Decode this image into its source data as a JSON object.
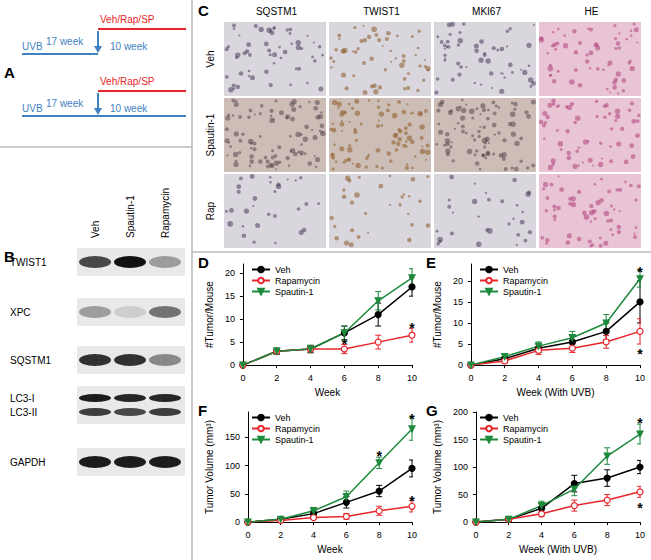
{
  "panel_labels": [
    "A",
    "B",
    "C",
    "D",
    "E",
    "F",
    "G"
  ],
  "schematic": {
    "rows": [
      {
        "treatment": "Veh/Rap/SP",
        "exposure": "UVB",
        "first_period": "17 week",
        "second_period": "10 week"
      },
      {
        "treatment": "Veh/Rap/SP",
        "exposure": "UVB",
        "first_period": "17 week",
        "second_period": "10 week"
      }
    ]
  },
  "western_blot": {
    "lanes": [
      "Veh",
      "Spautin-1",
      "Rapamycin"
    ],
    "rows": [
      "TWIST1",
      "XPC",
      "SQSTM1",
      "LC3-I",
      "LC3-II",
      "GAPDH"
    ]
  },
  "ihc": {
    "columns": [
      "SQSTM1",
      "TWIST1",
      "MKI67",
      "HE"
    ],
    "rows": [
      "Veh",
      "Spautin-1",
      "Rap"
    ]
  },
  "chart_data": [
    {
      "type": "line",
      "xlabel": "Week",
      "ylabel": "#Tumor/Mouse",
      "x": [
        0,
        2,
        4,
        6,
        8,
        10
      ],
      "xlim": [
        0,
        10
      ],
      "xticks": [
        0,
        2,
        4,
        6,
        8,
        10
      ],
      "ylim": [
        0,
        22
      ],
      "yticks": [
        0,
        5,
        10,
        15,
        20
      ],
      "grid": false,
      "legend": "upper left",
      "series": [
        {
          "name": "Veh",
          "color": "#000000",
          "marker": "circle",
          "values": [
            0,
            3,
            3.5,
            7,
            11,
            17
          ],
          "errors": [
            0,
            0.7,
            0.8,
            1.5,
            2.5,
            2
          ]
        },
        {
          "name": "Rapamycin",
          "color": "#e8262a",
          "marker": "open_circle",
          "values": [
            0,
            3,
            3.5,
            3.5,
            5,
            6.5
          ],
          "errors": [
            0,
            0.6,
            0.7,
            1,
            1.5,
            1.5
          ]
        },
        {
          "name": "Spautin-1",
          "color": "#1e8a3c",
          "marker": "triangle_down",
          "values": [
            0,
            3,
            3.5,
            7,
            14,
            19
          ],
          "errors": [
            0,
            0.7,
            0.8,
            1.5,
            2,
            2
          ]
        }
      ],
      "annotations": [
        {
          "x": 6,
          "y": 5.5,
          "text": "*"
        },
        {
          "x": 10,
          "y": 9,
          "text": "*"
        }
      ]
    },
    {
      "type": "line",
      "xlabel": "Week (With UVB)",
      "ylabel": "#Tumor/Mouse",
      "x": [
        0,
        2,
        4,
        6,
        8,
        10
      ],
      "xlim": [
        0,
        10
      ],
      "xticks": [
        0,
        2,
        4,
        6,
        8,
        10
      ],
      "ylim": [
        0,
        24
      ],
      "yticks": [
        0,
        5,
        10,
        15,
        20
      ],
      "grid": false,
      "legend": "upper left",
      "series": [
        {
          "name": "Veh",
          "color": "#000000",
          "marker": "circle",
          "values": [
            0,
            1.5,
            4,
            5.5,
            8,
            15
          ],
          "errors": [
            0,
            0.5,
            1,
            1.5,
            2,
            5
          ]
        },
        {
          "name": "Rapamycin",
          "color": "#e8262a",
          "marker": "open_circle",
          "values": [
            0,
            1,
            3.5,
            4,
            5.5,
            8
          ],
          "errors": [
            0,
            0.5,
            1,
            1,
            1.5,
            3
          ]
        },
        {
          "name": "Spautin-1",
          "color": "#1e8a3c",
          "marker": "triangle_down",
          "values": [
            0,
            2,
            4.5,
            6.5,
            10,
            20.5
          ],
          "errors": [
            0,
            0.6,
            1,
            1.5,
            2,
            2
          ]
        }
      ],
      "annotations": [
        {
          "x": 10,
          "y": 23,
          "text": "*"
        },
        {
          "x": 10,
          "y": 3.5,
          "text": "*"
        }
      ]
    },
    {
      "type": "line",
      "xlabel": "Week",
      "ylabel": "Tumor Volume (mm³)",
      "x": [
        0,
        2,
        4,
        6,
        8,
        10
      ],
      "xlim": [
        0,
        10
      ],
      "xticks": [
        0,
        2,
        4,
        6,
        8,
        10
      ],
      "ylim": [
        0,
        195
      ],
      "yticks": [
        0,
        50,
        100,
        150
      ],
      "grid": false,
      "legend": "upper left",
      "series": [
        {
          "name": "Veh",
          "color": "#000000",
          "marker": "circle",
          "values": [
            0,
            5,
            15,
            35,
            55,
            95
          ],
          "errors": [
            0,
            2,
            5,
            10,
            10,
            15
          ]
        },
        {
          "name": "Rapamycin",
          "color": "#e8262a",
          "marker": "open_circle",
          "values": [
            0,
            3,
            8,
            10,
            20,
            28
          ],
          "errors": [
            0,
            2,
            3,
            5,
            8,
            10
          ]
        },
        {
          "name": "Spautin-1",
          "color": "#1e8a3c",
          "marker": "triangle_down",
          "values": [
            0,
            5,
            20,
            45,
            105,
            165
          ],
          "errors": [
            0,
            2,
            6,
            10,
            10,
            20
          ]
        }
      ],
      "annotations": [
        {
          "x": 8,
          "y": 125,
          "text": "*"
        },
        {
          "x": 10,
          "y": 190,
          "text": "*"
        },
        {
          "x": 10,
          "y": 45,
          "text": "*"
        }
      ]
    },
    {
      "type": "line",
      "xlabel": "Week (With UVB)",
      "ylabel": "Tumor Volume (mm³)",
      "x": [
        0,
        2,
        4,
        6,
        8,
        10
      ],
      "xlim": [
        0,
        10
      ],
      "xticks": [
        0,
        2,
        4,
        6,
        8,
        10
      ],
      "ylim": [
        0,
        200
      ],
      "yticks": [
        0,
        50,
        100,
        150,
        200
      ],
      "grid": false,
      "legend": "upper left",
      "series": [
        {
          "name": "Veh",
          "color": "#000000",
          "marker": "circle",
          "values": [
            0,
            5,
            25,
            70,
            80,
            100
          ],
          "errors": [
            0,
            3,
            8,
            15,
            15,
            12
          ]
        },
        {
          "name": "Rapamycin",
          "color": "#e8262a",
          "marker": "open_circle",
          "values": [
            0,
            5,
            15,
            30,
            40,
            55
          ],
          "errors": [
            0,
            3,
            5,
            10,
            10,
            10
          ]
        },
        {
          "name": "Spautin-1",
          "color": "#1e8a3c",
          "marker": "triangle_down",
          "values": [
            0,
            5,
            30,
            60,
            120,
            160
          ],
          "errors": [
            0,
            3,
            8,
            12,
            15,
            18
          ]
        }
      ],
      "annotations": [
        {
          "x": 10,
          "y": 187,
          "text": "*"
        },
        {
          "x": 10,
          "y": 33,
          "text": "*"
        }
      ]
    }
  ]
}
